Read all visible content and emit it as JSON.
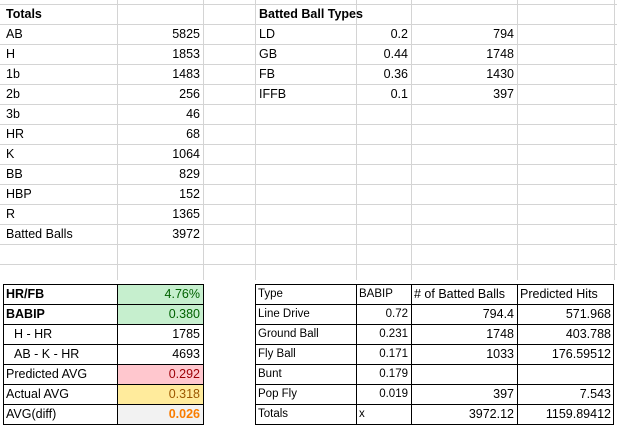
{
  "totals": {
    "header": "Totals",
    "rows": [
      {
        "label": "AB",
        "value": "5825"
      },
      {
        "label": "H",
        "value": "1853"
      },
      {
        "label": "1b",
        "value": "1483"
      },
      {
        "label": "2b",
        "value": "256"
      },
      {
        "label": "3b",
        "value": "46"
      },
      {
        "label": "HR",
        "value": "68"
      },
      {
        "label": "K",
        "value": "1064"
      },
      {
        "label": "BB",
        "value": "829"
      },
      {
        "label": "HBP",
        "value": "152"
      },
      {
        "label": "R",
        "value": "1365"
      },
      {
        "label": "Batted Balls",
        "value": "3972"
      }
    ]
  },
  "batted_ball_types": {
    "header": "Batted Ball Types",
    "rows": [
      {
        "label": "LD",
        "pct": "0.2",
        "count": "794"
      },
      {
        "label": "GB",
        "pct": "0.44",
        "count": "1748"
      },
      {
        "label": "FB",
        "pct": "0.36",
        "count": "1430"
      },
      {
        "label": "IFFB",
        "pct": "0.1",
        "count": "397"
      }
    ]
  },
  "summary": {
    "rows": [
      {
        "label": "HR/FB",
        "value": "4.76%"
      },
      {
        "label": "BABIP",
        "value": "0.380"
      },
      {
        "label": "H - HR",
        "value": "1785"
      },
      {
        "label": "AB - K - HR",
        "value": "4693"
      },
      {
        "label": "Predicted AVG",
        "value": "0.292"
      },
      {
        "label": "Actual AVG",
        "value": "0.318"
      },
      {
        "label": "AVG(diff)",
        "value": "0.026"
      }
    ],
    "colors": {
      "green": "#c6efce",
      "red": "#ffc7ce",
      "yellow": "#ffeb9c",
      "gray": "#f2f2f2",
      "orange_text": "#fa7d00",
      "green_text": "#006100"
    }
  },
  "prediction": {
    "headers": [
      "Type",
      "BABIP",
      "# of Batted Balls",
      "Predicted Hits"
    ],
    "rows": [
      {
        "type": "Line Drive",
        "babip": "0.72",
        "balls": "794.4",
        "hits": "571.968"
      },
      {
        "type": "Ground Ball",
        "babip": "0.231",
        "balls": "1748",
        "hits": "403.788"
      },
      {
        "type": "Fly Ball",
        "babip": "0.171",
        "balls": "1033",
        "hits": "176.59512"
      },
      {
        "type": "Bunt",
        "babip": "0.179",
        "balls": "",
        "hits": ""
      },
      {
        "type": "Pop Fly",
        "babip": "0.019",
        "balls": "397",
        "hits": "7.543"
      },
      {
        "type": "Totals",
        "babip": "x",
        "balls": "3972.12",
        "hits": "1159.89412"
      }
    ]
  }
}
